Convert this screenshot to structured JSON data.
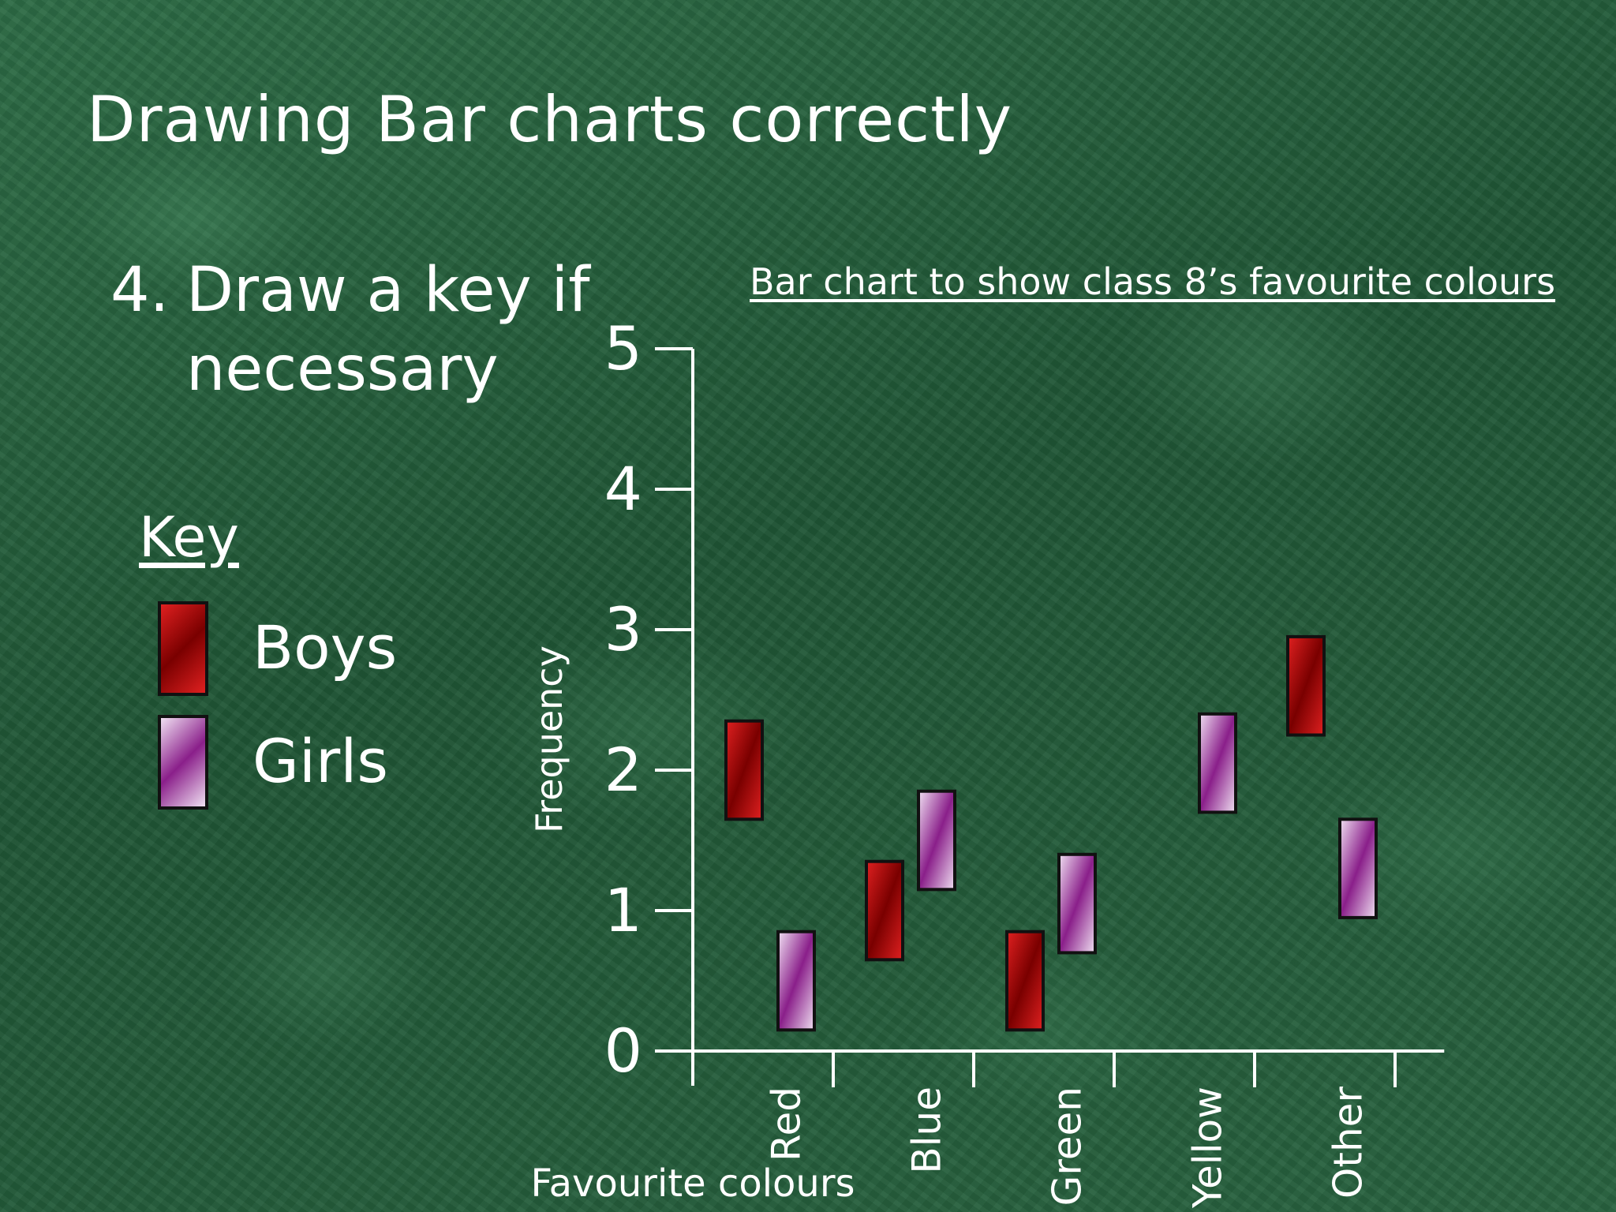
{
  "slide": {
    "title": "Drawing Bar charts correctly",
    "point_number": "4.",
    "point_line1": "Draw a key if",
    "point_line2": "necessary"
  },
  "key": {
    "title": "Key",
    "items": [
      {
        "label": "Boys",
        "color": "#c00000"
      },
      {
        "label": "Girls",
        "color": "#8a1f8a"
      }
    ]
  },
  "chart_data": {
    "type": "bar",
    "title": "Bar chart to show class 8’s favourite colours",
    "xlabel": "Favourite colours",
    "ylabel": "Frequency",
    "categories": [
      "Red",
      "Blue",
      "Green",
      "Yellow",
      "Other"
    ],
    "yticks": [
      "0",
      "1",
      "2",
      "3",
      "4",
      "5"
    ],
    "ylim": [
      0,
      5
    ],
    "series": [
      {
        "name": "Boys",
        "color": "#c00000",
        "bars": [
          [
            1.65,
            2.35
          ],
          [
            0.65,
            1.35
          ],
          [
            0.15,
            0.85
          ],
          null,
          [
            2.25,
            2.95
          ]
        ]
      },
      {
        "name": "Girls",
        "color": "#8a1f8a",
        "bars": [
          [
            0.15,
            0.85
          ],
          [
            1.15,
            1.85
          ],
          [
            0.7,
            1.4
          ],
          [
            1.7,
            2.4
          ],
          [
            0.95,
            1.65
          ]
        ]
      }
    ],
    "legend": "left",
    "grid": false
  }
}
